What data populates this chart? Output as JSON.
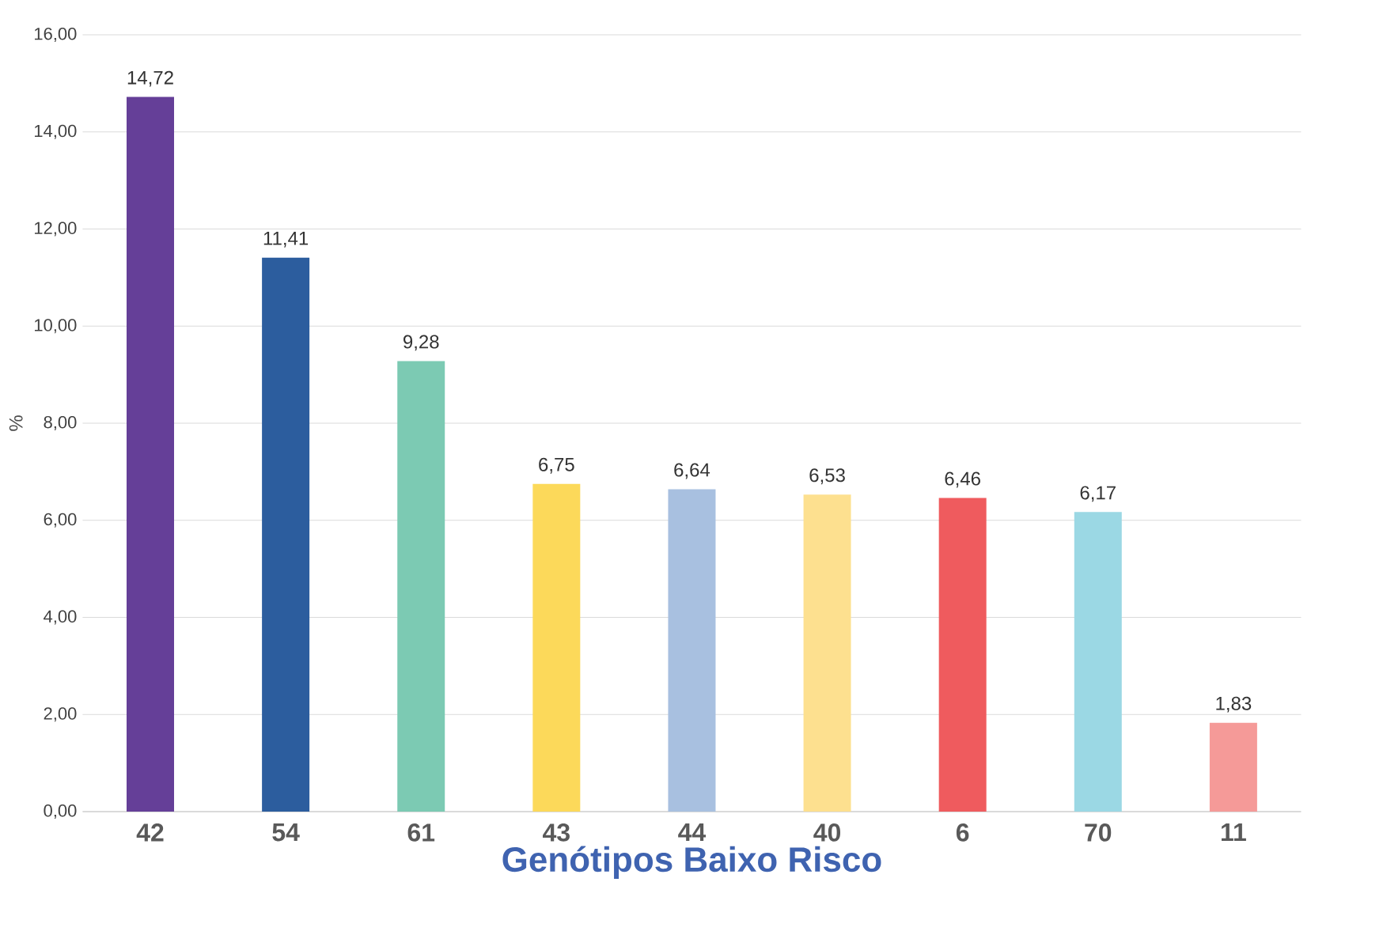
{
  "chart_data": {
    "type": "bar",
    "xlabel": "Genótipos Baixo Risco",
    "ylabel": "%",
    "categories": [
      "42",
      "54",
      "61",
      "43",
      "44",
      "40",
      "6",
      "70",
      "11"
    ],
    "values": [
      14.72,
      11.41,
      9.28,
      6.75,
      6.64,
      6.53,
      6.46,
      6.17,
      1.83
    ],
    "value_labels": [
      "14,72",
      "11,41",
      "9,28",
      "6,75",
      "6,64",
      "6,53",
      "6,46",
      "6,17",
      "1,83"
    ],
    "colors": [
      "#653f98",
      "#2c5d9e",
      "#7ccab3",
      "#fcd95a",
      "#a8c0e0",
      "#fde08f",
      "#ef5b5e",
      "#9bd8e4",
      "#f59a98"
    ],
    "ylim": [
      0,
      16
    ],
    "yticks": [
      {
        "value": 0,
        "label": "0,00"
      },
      {
        "value": 2,
        "label": "2,00"
      },
      {
        "value": 4,
        "label": "4,00"
      },
      {
        "value": 6,
        "label": "6,00"
      },
      {
        "value": 8,
        "label": "8,00"
      },
      {
        "value": 10,
        "label": "10,00"
      },
      {
        "value": 12,
        "label": "12,00"
      },
      {
        "value": 14,
        "label": "14,00"
      },
      {
        "value": 16,
        "label": "16,00"
      }
    ],
    "grid": "y"
  }
}
